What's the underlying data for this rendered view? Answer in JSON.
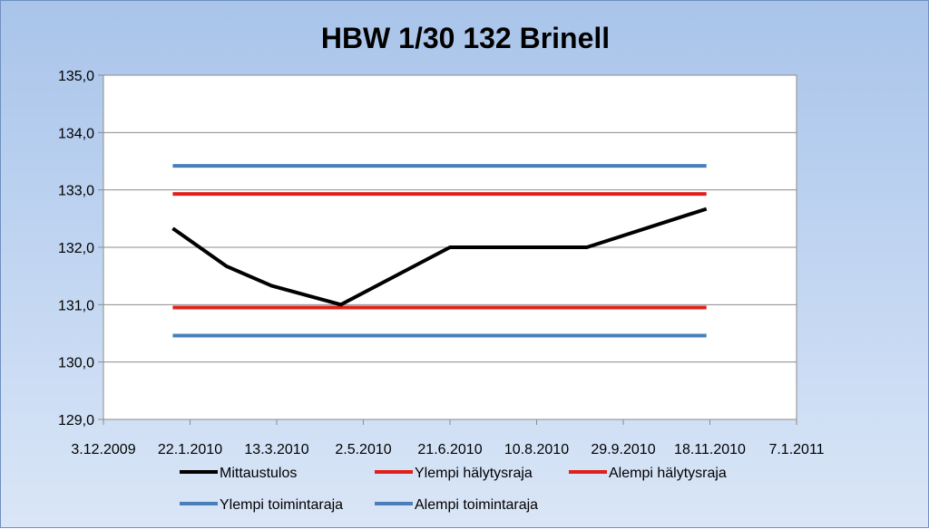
{
  "chart_data": {
    "type": "line",
    "title": "HBW 1/30 132 Brinell",
    "xlabel": "",
    "ylabel": "",
    "x_axis": {
      "type": "date",
      "min": "2009-12-03",
      "max": "2011-01-07",
      "ticks": [
        "2009-12-03",
        "2010-01-22",
        "2010-03-13",
        "2010-05-02",
        "2010-06-21",
        "2010-08-10",
        "2010-09-29",
        "2010-11-18",
        "2011-01-07"
      ],
      "tick_labels": [
        "3.12.2009",
        "22.1.2010",
        "13.3.2010",
        "2.5.2010",
        "21.6.2010",
        "10.8.2010",
        "29.9.2010",
        "18.11.2010",
        "7.1.2011"
      ]
    },
    "y_axis": {
      "min": 129.0,
      "max": 135.0,
      "ticks": [
        129.0,
        130.0,
        131.0,
        132.0,
        133.0,
        134.0,
        135.0
      ],
      "tick_labels": [
        "129,0",
        "130,0",
        "131,0",
        "132,0",
        "133,0",
        "134,0",
        "135,0"
      ]
    },
    "grid": {
      "horizontal": true,
      "vertical": false
    },
    "legend_position": "bottom",
    "series": [
      {
        "name": "Mittaustulos",
        "color": "#000000",
        "x": [
          "2010-01-12",
          "2010-02-12",
          "2010-03-10",
          "2010-04-19",
          "2010-06-21",
          "2010-09-08",
          "2010-11-16"
        ],
        "y": [
          132.33,
          131.67,
          131.33,
          131.0,
          132.0,
          132.0,
          132.67
        ]
      },
      {
        "name": "Ylempi hälytysraja",
        "color": "#e0201b",
        "x": [
          "2010-01-12",
          "2010-11-16"
        ],
        "y": [
          132.93,
          132.93
        ]
      },
      {
        "name": "Alempi hälytysraja",
        "color": "#e0201b",
        "x": [
          "2010-01-12",
          "2010-11-16"
        ],
        "y": [
          130.95,
          130.95
        ]
      },
      {
        "name": "Ylempi toimintaraja",
        "color": "#4a7ebb",
        "x": [
          "2010-01-12",
          "2010-11-16"
        ],
        "y": [
          133.42,
          133.42
        ]
      },
      {
        "name": "Alempi toimintaraja",
        "color": "#4a7ebb",
        "x": [
          "2010-01-12",
          "2010-11-16"
        ],
        "y": [
          130.46,
          130.46
        ]
      }
    ]
  }
}
